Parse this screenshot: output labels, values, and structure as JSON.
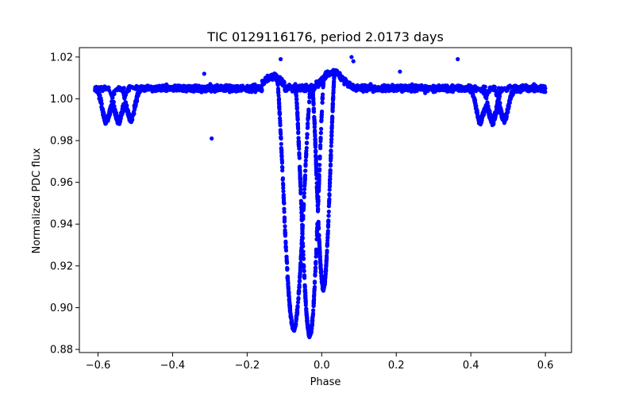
{
  "chart_data": {
    "type": "scatter",
    "title": "TIC 0129116176, period 2.0173 days",
    "xlabel": "Phase",
    "ylabel": "Normalized PDC flux",
    "xlim": [
      -0.65,
      0.67
    ],
    "ylim": [
      0.8785,
      1.0245
    ],
    "xticks": [
      -0.6,
      -0.4,
      -0.2,
      0.0,
      0.2,
      0.4,
      0.6
    ],
    "xtick_labels": [
      "−0.6",
      "−0.4",
      "−0.2",
      "0.0",
      "0.2",
      "0.4",
      "0.6"
    ],
    "yticks": [
      0.88,
      0.9,
      0.92,
      0.94,
      0.96,
      0.98,
      1.0,
      1.02
    ],
    "ytick_labels": [
      "0.88",
      "0.90",
      "0.92",
      "0.94",
      "0.96",
      "0.98",
      "1.00",
      "1.02"
    ],
    "marker_color": "#0000ff",
    "grid": false,
    "series": [
      {
        "name": "flux",
        "baseline": 1.005,
        "phase_range": [
          -0.6,
          0.6
        ],
        "primary_eclipses": [
          {
            "center": -0.075,
            "depth": 0.115,
            "half_width": 0.045
          },
          {
            "center": -0.032,
            "depth": 0.118,
            "half_width": 0.038
          },
          {
            "center": 0.005,
            "depth": 0.1,
            "half_width": 0.03
          }
        ],
        "secondary_eclipses": [
          {
            "center": -0.578,
            "depth": 0.016
          },
          {
            "center": -0.545,
            "depth": 0.016
          },
          {
            "center": -0.512,
            "depth": 0.015
          },
          {
            "center": 0.425,
            "depth": 0.016
          },
          {
            "center": 0.458,
            "depth": 0.016
          },
          {
            "center": 0.49,
            "depth": 0.015
          }
        ],
        "outliers": [
          {
            "x": -0.295,
            "y": 0.981
          },
          {
            "x": -0.315,
            "y": 1.012
          },
          {
            "x": -0.11,
            "y": 1.019
          },
          {
            "x": 0.08,
            "y": 1.02
          },
          {
            "x": 0.085,
            "y": 1.018
          },
          {
            "x": 0.365,
            "y": 1.019
          },
          {
            "x": 0.21,
            "y": 1.013
          }
        ]
      }
    ]
  }
}
